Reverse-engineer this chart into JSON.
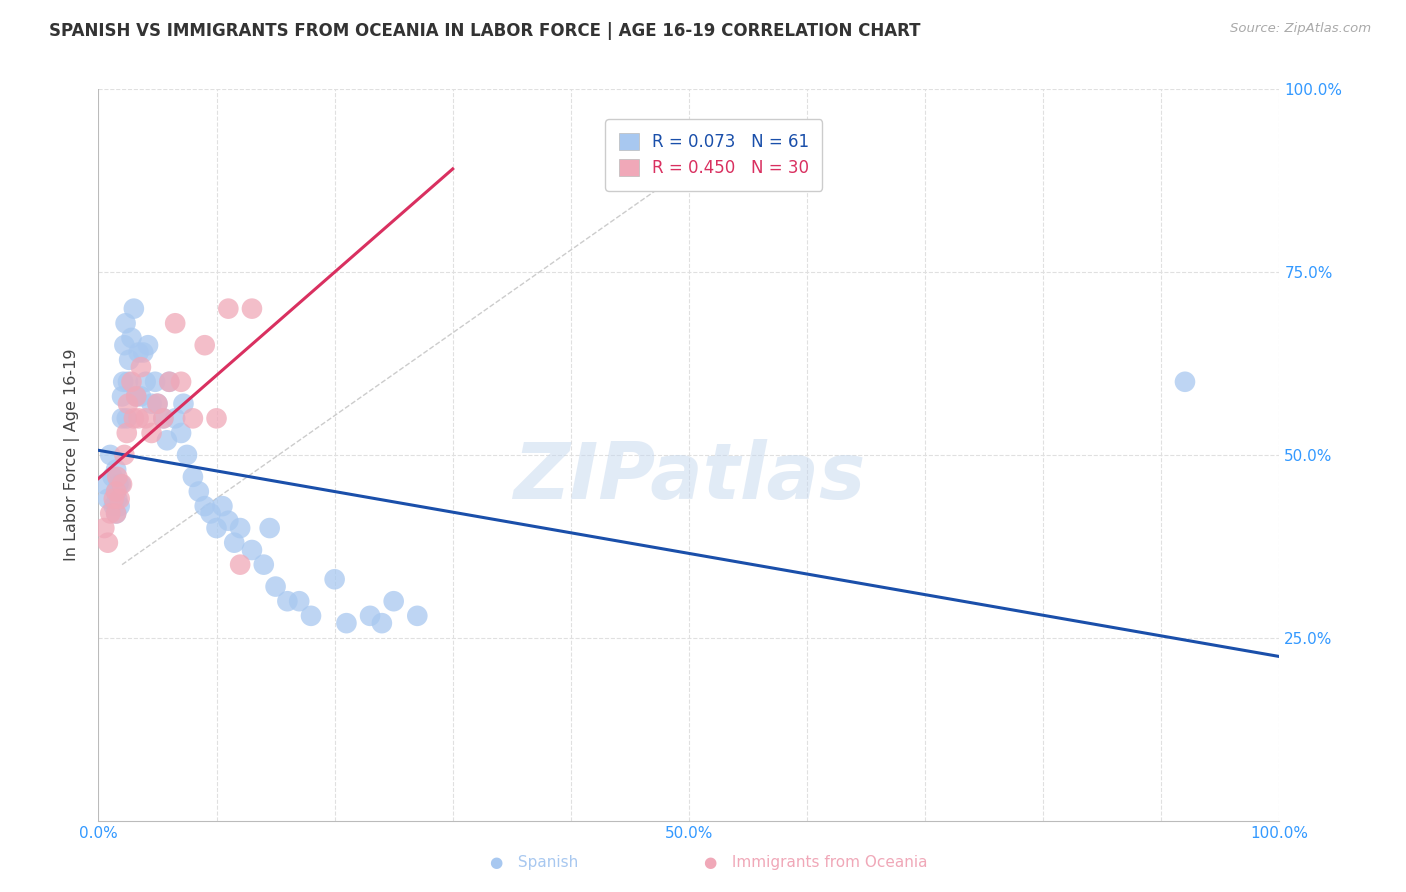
{
  "title": "SPANISH VS IMMIGRANTS FROM OCEANIA IN LABOR FORCE | AGE 16-19 CORRELATION CHART",
  "source": "Source: ZipAtlas.com",
  "ylabel": "In Labor Force | Age 16-19",
  "xlim": [
    0.0,
    1.0
  ],
  "ylim": [
    0.0,
    1.0
  ],
  "background_color": "#ffffff",
  "grid_color": "#e0e0e0",
  "watermark": "ZIPatlas",
  "blue_R": 0.073,
  "blue_N": 61,
  "pink_R": 0.45,
  "pink_N": 30,
  "blue_color": "#a8c8f0",
  "pink_color": "#f0a8b8",
  "blue_line_color": "#1a4faa",
  "pink_line_color": "#d93060",
  "blue_x": [
    0.005,
    0.008,
    0.01,
    0.012,
    0.013,
    0.015,
    0.015,
    0.015,
    0.016,
    0.017,
    0.018,
    0.019,
    0.02,
    0.02,
    0.021,
    0.022,
    0.023,
    0.024,
    0.025,
    0.026,
    0.028,
    0.03,
    0.032,
    0.034,
    0.036,
    0.038,
    0.04,
    0.042,
    0.045,
    0.048,
    0.05,
    0.055,
    0.058,
    0.06,
    0.065,
    0.07,
    0.072,
    0.075,
    0.08,
    0.085,
    0.09,
    0.095,
    0.1,
    0.105,
    0.11,
    0.115,
    0.12,
    0.13,
    0.14,
    0.145,
    0.15,
    0.16,
    0.17,
    0.18,
    0.2,
    0.21,
    0.23,
    0.24,
    0.25,
    0.27,
    0.92
  ],
  "blue_y": [
    0.46,
    0.44,
    0.5,
    0.47,
    0.43,
    0.42,
    0.45,
    0.48,
    0.44,
    0.46,
    0.43,
    0.46,
    0.55,
    0.58,
    0.6,
    0.65,
    0.68,
    0.55,
    0.6,
    0.63,
    0.66,
    0.7,
    0.58,
    0.64,
    0.58,
    0.64,
    0.6,
    0.65,
    0.57,
    0.6,
    0.57,
    0.55,
    0.52,
    0.6,
    0.55,
    0.53,
    0.57,
    0.5,
    0.47,
    0.45,
    0.43,
    0.42,
    0.4,
    0.43,
    0.41,
    0.38,
    0.4,
    0.37,
    0.35,
    0.4,
    0.32,
    0.3,
    0.3,
    0.28,
    0.33,
    0.27,
    0.28,
    0.27,
    0.3,
    0.28,
    0.6
  ],
  "pink_x": [
    0.005,
    0.008,
    0.01,
    0.013,
    0.015,
    0.015,
    0.016,
    0.018,
    0.02,
    0.022,
    0.024,
    0.025,
    0.028,
    0.03,
    0.032,
    0.034,
    0.036,
    0.04,
    0.045,
    0.05,
    0.055,
    0.06,
    0.065,
    0.07,
    0.08,
    0.09,
    0.1,
    0.11,
    0.12,
    0.13
  ],
  "pink_y": [
    0.4,
    0.38,
    0.42,
    0.44,
    0.42,
    0.45,
    0.47,
    0.44,
    0.46,
    0.5,
    0.53,
    0.57,
    0.6,
    0.55,
    0.58,
    0.55,
    0.62,
    0.55,
    0.53,
    0.57,
    0.55,
    0.6,
    0.68,
    0.6,
    0.55,
    0.65,
    0.55,
    0.7,
    0.35,
    0.7
  ],
  "dashed_line_color": "#cccccc",
  "blue_line_x_start": 0.0,
  "blue_line_x_end": 1.0,
  "pink_line_x_start": 0.0,
  "pink_line_x_end": 0.3
}
